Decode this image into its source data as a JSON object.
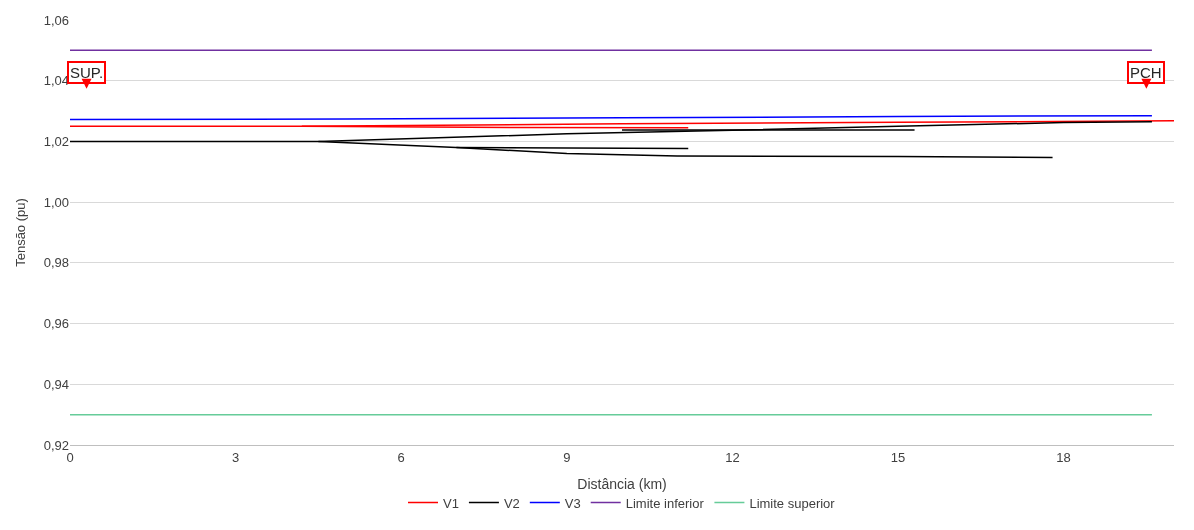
{
  "chart_data": {
    "type": "line",
    "xlabel": "Distância (km)",
    "ylabel": "Tensão (pu)",
    "xlim": [
      0,
      20
    ],
    "xticks": [
      0,
      3,
      6,
      9,
      12,
      15,
      18
    ],
    "ylim": [
      0.92,
      1.06
    ],
    "yticks": [
      {
        "value": 0.92,
        "label": "0,92"
      },
      {
        "value": 0.94,
        "label": "0,94"
      },
      {
        "value": 0.96,
        "label": "0,96"
      },
      {
        "value": 0.98,
        "label": "0,98"
      },
      {
        "value": 1.0,
        "label": "1,00"
      },
      {
        "value": 1.02,
        "label": "1,02"
      },
      {
        "value": 1.04,
        "label": "1,04"
      },
      {
        "value": 1.06,
        "label": "1,06"
      }
    ],
    "grid": "y",
    "legend": "bottom",
    "marker": "none",
    "line_style": "solid",
    "series": [
      {
        "name": "V1",
        "color": "#ff0000",
        "x": [
          0,
          4.2,
          10,
          15,
          20,
          null,
          4.2,
          8,
          11.2
        ],
        "values": [
          1.025,
          1.025,
          1.0258,
          1.0263,
          1.0268,
          null,
          1.025,
          1.0246,
          1.0245
        ]
      },
      {
        "name": "V2",
        "color": "#000000",
        "x": [
          0,
          4.5,
          9,
          12,
          15,
          18,
          19.6,
          null,
          4.5,
          7,
          9,
          11,
          15,
          17.8,
          null,
          7,
          11.2,
          null,
          10,
          15.3
        ],
        "values": [
          1.02,
          1.02,
          1.0225,
          1.0237,
          1.025,
          1.0262,
          1.0265,
          null,
          1.02,
          1.018,
          1.016,
          1.0152,
          1.015,
          1.0147,
          null,
          1.018,
          1.0177,
          null,
          1.0238,
          1.0238
        ]
      },
      {
        "name": "V3",
        "color": "#0000ff",
        "x": [
          0,
          5,
          10,
          15,
          19.6
        ],
        "values": [
          1.0272,
          1.0274,
          1.0278,
          1.0282,
          1.0285
        ]
      },
      {
        "name": "Limite inferior",
        "color": "#7030a0",
        "x": [
          0,
          19.6
        ],
        "values": [
          1.05,
          1.05
        ]
      },
      {
        "name": "Limite superior",
        "color": "#66cc99",
        "x": [
          0,
          19.6
        ],
        "values": [
          0.93,
          0.93
        ]
      }
    ],
    "annotations": [
      "SUP.",
      "PCH"
    ]
  }
}
